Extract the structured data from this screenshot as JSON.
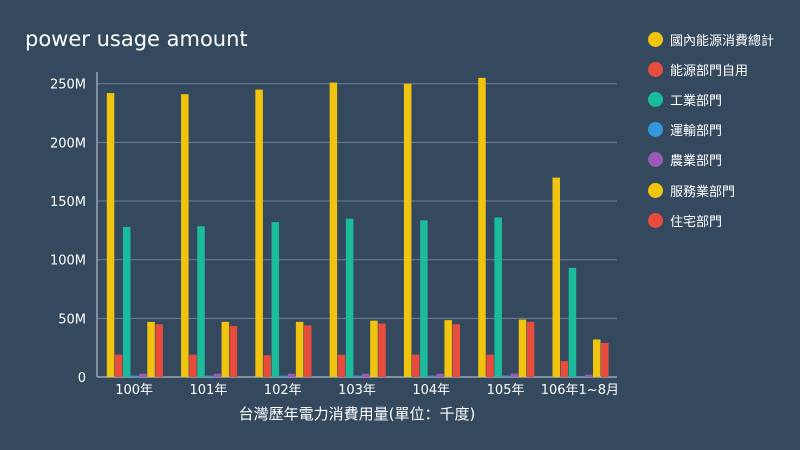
{
  "chart_data": {
    "type": "bar",
    "title": "power usage amount",
    "xlabel": "台灣歷年電力消費用量(單位：千度)",
    "ylabel": "",
    "ylim": [
      0,
      260000000
    ],
    "yticks": [
      0,
      50000000,
      100000000,
      150000000,
      200000000,
      250000000
    ],
    "ytick_labels": [
      "0",
      "50M",
      "100M",
      "150M",
      "200M",
      "250M"
    ],
    "grid": true,
    "legend_position": "right",
    "categories": [
      "100年",
      "101年",
      "102年",
      "103年",
      "104年",
      "105年",
      "106年1~8月"
    ],
    "series": [
      {
        "name": "國內能源消費總計",
        "color": "#f1c40f",
        "values": [
          242000000,
          241000000,
          245000000,
          251000000,
          250000000,
          255000000,
          170000000
        ]
      },
      {
        "name": "能源部門自用",
        "color": "#e74c3c",
        "values": [
          19000000,
          19000000,
          18500000,
          19000000,
          19000000,
          19000000,
          13500000
        ]
      },
      {
        "name": "工業部門",
        "color": "#1abc9c",
        "values": [
          128000000,
          128500000,
          132000000,
          135000000,
          133500000,
          136000000,
          93000000
        ]
      },
      {
        "name": "運輸部門",
        "color": "#3498db",
        "values": [
          1200000,
          1200000,
          1200000,
          1200000,
          1200000,
          1200000,
          800000
        ]
      },
      {
        "name": "農業部門",
        "color": "#9b59b6",
        "values": [
          2800000,
          2800000,
          2800000,
          2800000,
          2800000,
          2900000,
          2000000
        ]
      },
      {
        "name": "服務業部門",
        "color": "#f1c40f",
        "values": [
          47000000,
          47000000,
          47000000,
          48000000,
          48500000,
          49000000,
          32000000
        ]
      },
      {
        "name": "住宅部門",
        "color": "#e74c3c",
        "values": [
          45000000,
          43500000,
          44000000,
          45500000,
          45000000,
          47000000,
          29000000
        ]
      }
    ]
  }
}
